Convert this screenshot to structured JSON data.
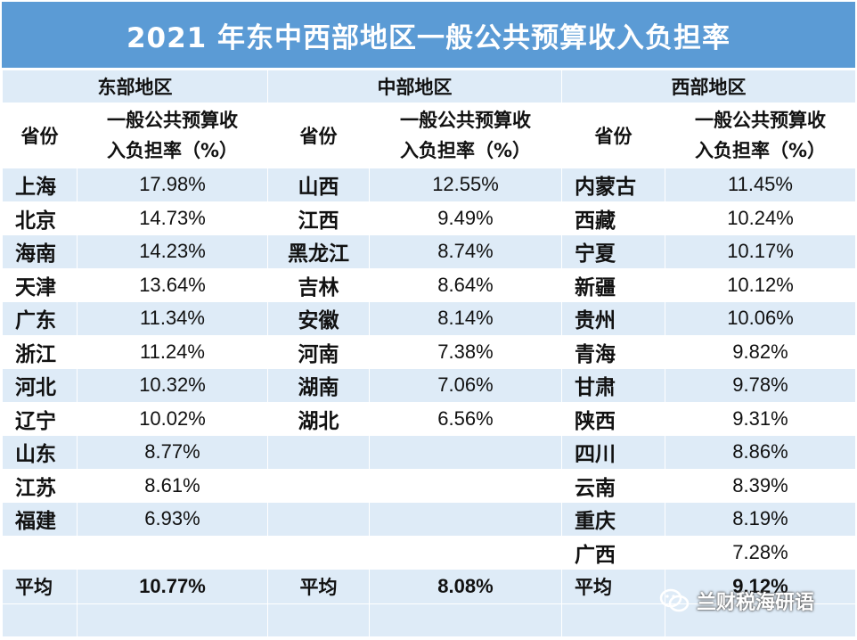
{
  "title": "2021 年东中西部地区一般公共预算收入负担率",
  "columns": {
    "province": "省份",
    "metric_line1": "一般公共预算收",
    "metric_line2": "入负担率（%）"
  },
  "east": {
    "name": "东部地区",
    "rows": [
      {
        "province": "上海",
        "rate": "17.98%"
      },
      {
        "province": "北京",
        "rate": "14.73%"
      },
      {
        "province": "海南",
        "rate": "14.23%"
      },
      {
        "province": "天津",
        "rate": "13.64%"
      },
      {
        "province": "广东",
        "rate": "11.34%"
      },
      {
        "province": "浙江",
        "rate": "11.24%"
      },
      {
        "province": "河北",
        "rate": "10.32%"
      },
      {
        "province": "辽宁",
        "rate": "10.02%"
      },
      {
        "province": "山东",
        "rate": "8.77%"
      },
      {
        "province": "江苏",
        "rate": "8.61%"
      },
      {
        "province": "福建",
        "rate": "6.93%"
      },
      {
        "province": "",
        "rate": ""
      }
    ],
    "average_label": "平均",
    "average": "10.77%"
  },
  "central": {
    "name": "中部地区",
    "rows": [
      {
        "province": "山西",
        "rate": "12.55%"
      },
      {
        "province": "江西",
        "rate": "9.49%"
      },
      {
        "province": "黑龙江",
        "rate": "8.74%"
      },
      {
        "province": "吉林",
        "rate": "8.64%"
      },
      {
        "province": "安徽",
        "rate": "8.14%"
      },
      {
        "province": "河南",
        "rate": "7.38%"
      },
      {
        "province": "湖南",
        "rate": "7.06%"
      },
      {
        "province": "湖北",
        "rate": "6.56%"
      },
      {
        "province": "",
        "rate": ""
      },
      {
        "province": "",
        "rate": ""
      },
      {
        "province": "",
        "rate": ""
      },
      {
        "province": "",
        "rate": ""
      }
    ],
    "average_label": "平均",
    "average": "8.08%"
  },
  "west": {
    "name": "西部地区",
    "rows": [
      {
        "province": "内蒙古",
        "rate": "11.45%"
      },
      {
        "province": "西藏",
        "rate": "10.24%"
      },
      {
        "province": "宁夏",
        "rate": "10.17%"
      },
      {
        "province": "新疆",
        "rate": "10.12%"
      },
      {
        "province": "贵州",
        "rate": "10.06%"
      },
      {
        "province": "青海",
        "rate": "9.82%"
      },
      {
        "province": "甘肃",
        "rate": "9.78%"
      },
      {
        "province": "陕西",
        "rate": "9.31%"
      },
      {
        "province": "四川",
        "rate": "8.86%"
      },
      {
        "province": "云南",
        "rate": "8.39%"
      },
      {
        "province": "重庆",
        "rate": "8.19%"
      },
      {
        "province": "广西",
        "rate": "7.28%"
      }
    ],
    "average_label": "平均",
    "average": "9.12%"
  },
  "watermark": "兰财税海研语",
  "colors": {
    "title_bg": "#5b9bd5",
    "band_light": "#deebf7",
    "band_white": "#ffffff"
  }
}
